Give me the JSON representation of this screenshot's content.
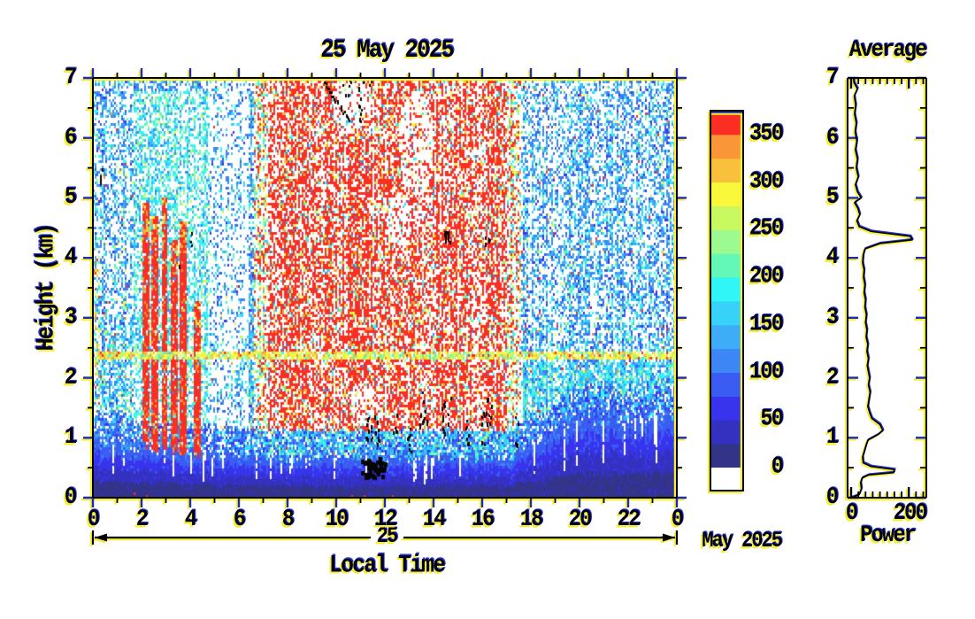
{
  "chart_data": [
    {
      "type": "heatmap",
      "title": "25 May 2025",
      "xlabel": "Local Time",
      "ylabel": "Height (km)",
      "date_label": "May 2025",
      "day_label": "25",
      "xlim": [
        0,
        24
      ],
      "ylim": [
        0,
        7
      ],
      "xtick_hours": [
        0,
        2,
        4,
        6,
        8,
        10,
        12,
        14,
        16,
        18,
        20,
        22,
        24
      ],
      "xtick_labels": [
        "0",
        "2",
        "4",
        "6",
        "8",
        "10",
        "12",
        "14",
        "16",
        "18",
        "20",
        "22",
        "0"
      ],
      "xtick_minor_hours": [
        1,
        3,
        5,
        7,
        9,
        11,
        13,
        15,
        17,
        19,
        21,
        23
      ],
      "ytick_values": [
        0,
        1,
        2,
        3,
        4,
        5,
        6,
        7
      ],
      "ytick_labels": [
        "0",
        "1",
        "2",
        "3",
        "4",
        "5",
        "6",
        "7"
      ],
      "grid": false,
      "colorbar": {
        "tick_values": [
          0,
          50,
          100,
          150,
          200,
          250,
          300,
          350
        ],
        "tick_labels": [
          "0",
          "50",
          "100",
          "150",
          "200",
          "250",
          "300",
          "350"
        ],
        "vmin": 0,
        "vmax": 375,
        "band_size": 25,
        "under_color": "#ffffff",
        "colors": [
          "#333388",
          "#3431c0",
          "#3834ee",
          "#3a5cf3",
          "#3c86f5",
          "#3eacf7",
          "#36d2f8",
          "#30f6f8",
          "#63f7b8",
          "#9cfa90",
          "#c9f960",
          "#f9f83a",
          "#f9c03c",
          "#fb9638",
          "#fb2e24"
        ]
      },
      "features": {
        "day_plume": {
          "t_start": 6.6,
          "t_end": 17.6,
          "note": "dense red daytime echo region reaching 7 km"
        },
        "stripe": {
          "height_km": 2.37,
          "note": "persistent yellow-green layer line across all hours"
        },
        "surface_layer_top_km": {
          "night": 0.9,
          "day": 0.66,
          "evening": 1.36
        },
        "dawn_streaks": [
          {
            "t": 2.2,
            "top_km": 4.9
          },
          {
            "t": 2.55,
            "top_km": 4.7
          },
          {
            "t": 2.95,
            "top_km": 5.0
          },
          {
            "t": 3.35,
            "top_km": 4.3
          },
          {
            "t": 3.7,
            "top_km": 4.6
          },
          {
            "t": 4.3,
            "top_km": 3.3
          }
        ],
        "light_column": {
          "t_start": 4.6,
          "t_end": 6.4,
          "note": "reduced echo density column"
        },
        "bird_echo_line": {
          "t0": 9.45,
          "h0": 6.95,
          "t1": 10.55,
          "h1": 6.3,
          "n": 24
        },
        "bird_echo_clusters": [
          {
            "t": 10.42,
            "h": 6.85,
            "rx": 0.18,
            "ry": 0.12,
            "n": 6
          },
          {
            "t": 10.95,
            "h": 6.5,
            "rx": 0.1,
            "ry": 0.22,
            "n": 7
          },
          {
            "t": 11.15,
            "h": 6.9,
            "rx": 0.3,
            "ry": 0.1,
            "n": 5
          },
          {
            "t": 14.55,
            "h": 4.36,
            "rx": 0.14,
            "ry": 0.1,
            "n": 11,
            "red": 1
          },
          {
            "t": 16.2,
            "h": 4.3,
            "rx": 0.09,
            "ry": 0.08,
            "n": 5
          },
          {
            "t": 4.05,
            "h": 4.33,
            "rx": 0.05,
            "ry": 0.1,
            "n": 3
          },
          {
            "t": 3.5,
            "h": 3.86,
            "rx": 0.05,
            "ry": 0.06,
            "n": 2
          },
          {
            "t": 0.28,
            "h": 5.38,
            "rx": 0.09,
            "ry": 0.12,
            "n": 4
          },
          {
            "t": 11.5,
            "h": 0.52,
            "rx": 0.5,
            "ry": 0.16,
            "n": 46,
            "big": 1
          },
          {
            "t": 11.45,
            "h": 1.12,
            "rx": 0.32,
            "ry": 0.26,
            "n": 20
          },
          {
            "t": 12.4,
            "h": 1.25,
            "rx": 0.1,
            "ry": 0.22,
            "n": 7
          },
          {
            "t": 13.0,
            "h": 0.95,
            "rx": 0.12,
            "ry": 0.28,
            "n": 8
          },
          {
            "t": 13.55,
            "h": 1.5,
            "rx": 0.16,
            "ry": 0.3,
            "n": 11
          },
          {
            "t": 14.5,
            "h": 1.35,
            "rx": 0.2,
            "ry": 0.42,
            "n": 13
          },
          {
            "t": 15.35,
            "h": 1.05,
            "rx": 0.12,
            "ry": 0.3,
            "n": 7
          },
          {
            "t": 16.1,
            "h": 1.3,
            "rx": 0.26,
            "ry": 0.4,
            "n": 15
          },
          {
            "t": 17.4,
            "h": 1.12,
            "rx": 0.1,
            "ry": 0.25,
            "n": 6
          }
        ],
        "white_holes": [
          {
            "t": 13.3,
            "h": 5.9,
            "rt": 0.7,
            "rh": 0.9
          },
          {
            "t": 12.6,
            "h": 4.6,
            "rt": 0.5,
            "rh": 0.5
          },
          {
            "t": 10.6,
            "h": 6.6,
            "rt": 0.8,
            "rh": 0.55
          },
          {
            "t": 11.1,
            "h": 1.6,
            "rt": 0.5,
            "rh": 0.4
          }
        ]
      }
    },
    {
      "type": "line",
      "title": "Average",
      "xlabel": "Power",
      "xtick_values": [
        0,
        200
      ],
      "xtick_labels": [
        "0",
        "200"
      ],
      "xtick_minor_step": 25,
      "xlim": [
        -14,
        262
      ],
      "ylim": [
        0,
        7
      ],
      "ytick_values": [
        0,
        1,
        2,
        3,
        4,
        5,
        6,
        7
      ],
      "ytick_labels": [
        "0",
        "1",
        "2",
        "3",
        "4",
        "5",
        "6",
        "7"
      ],
      "series": [
        {
          "name": "mean power profile",
          "points_power_height": [
            [
              0,
              0
            ],
            [
              28,
              0.05
            ],
            [
              36,
              0.15
            ],
            [
              33,
              0.25
            ],
            [
              38,
              0.33
            ],
            [
              60,
              0.38
            ],
            [
              148,
              0.42
            ],
            [
              150,
              0.47
            ],
            [
              70,
              0.52
            ],
            [
              42,
              0.58
            ],
            [
              40,
              0.68
            ],
            [
              46,
              0.78
            ],
            [
              52,
              0.88
            ],
            [
              58,
              0.96
            ],
            [
              92,
              1.05
            ],
            [
              110,
              1.12
            ],
            [
              100,
              1.22
            ],
            [
              72,
              1.32
            ],
            [
              64,
              1.42
            ],
            [
              58,
              1.52
            ],
            [
              62,
              1.64
            ],
            [
              66,
              1.76
            ],
            [
              60,
              1.88
            ],
            [
              64,
              2.0
            ],
            [
              60,
              2.1
            ],
            [
              56,
              2.2
            ],
            [
              60,
              2.32
            ],
            [
              55,
              2.44
            ],
            [
              58,
              2.56
            ],
            [
              52,
              2.68
            ],
            [
              55,
              2.8
            ],
            [
              50,
              2.92
            ],
            [
              53,
              3.05
            ],
            [
              48,
              3.18
            ],
            [
              50,
              3.3
            ],
            [
              45,
              3.42
            ],
            [
              48,
              3.55
            ],
            [
              43,
              3.68
            ],
            [
              45,
              3.8
            ],
            [
              40,
              3.92
            ],
            [
              42,
              4.05
            ],
            [
              48,
              4.15
            ],
            [
              100,
              4.24
            ],
            [
              212,
              4.3
            ],
            [
              205,
              4.36
            ],
            [
              70,
              4.44
            ],
            [
              28,
              4.52
            ],
            [
              20,
              4.62
            ],
            [
              30,
              4.72
            ],
            [
              24,
              4.82
            ],
            [
              12,
              4.92
            ],
            [
              35,
              5.0
            ],
            [
              22,
              5.1
            ],
            [
              15,
              5.22
            ],
            [
              25,
              5.35
            ],
            [
              18,
              5.5
            ],
            [
              22,
              5.65
            ],
            [
              15,
              5.8
            ],
            [
              20,
              5.95
            ],
            [
              14,
              6.1
            ],
            [
              18,
              6.25
            ],
            [
              12,
              6.4
            ],
            [
              16,
              6.55
            ],
            [
              11,
              6.7
            ],
            [
              22,
              6.82
            ],
            [
              10,
              6.92
            ],
            [
              8,
              7.0
            ]
          ]
        }
      ]
    }
  ],
  "style": {
    "axis_color": "#000000",
    "major_tick_color": "#1c2bb4",
    "shadow_yellow": "#f6ee35",
    "shadow_navy": "#2b3bd0",
    "label_color": "#00001c",
    "background": "#ffffff"
  }
}
